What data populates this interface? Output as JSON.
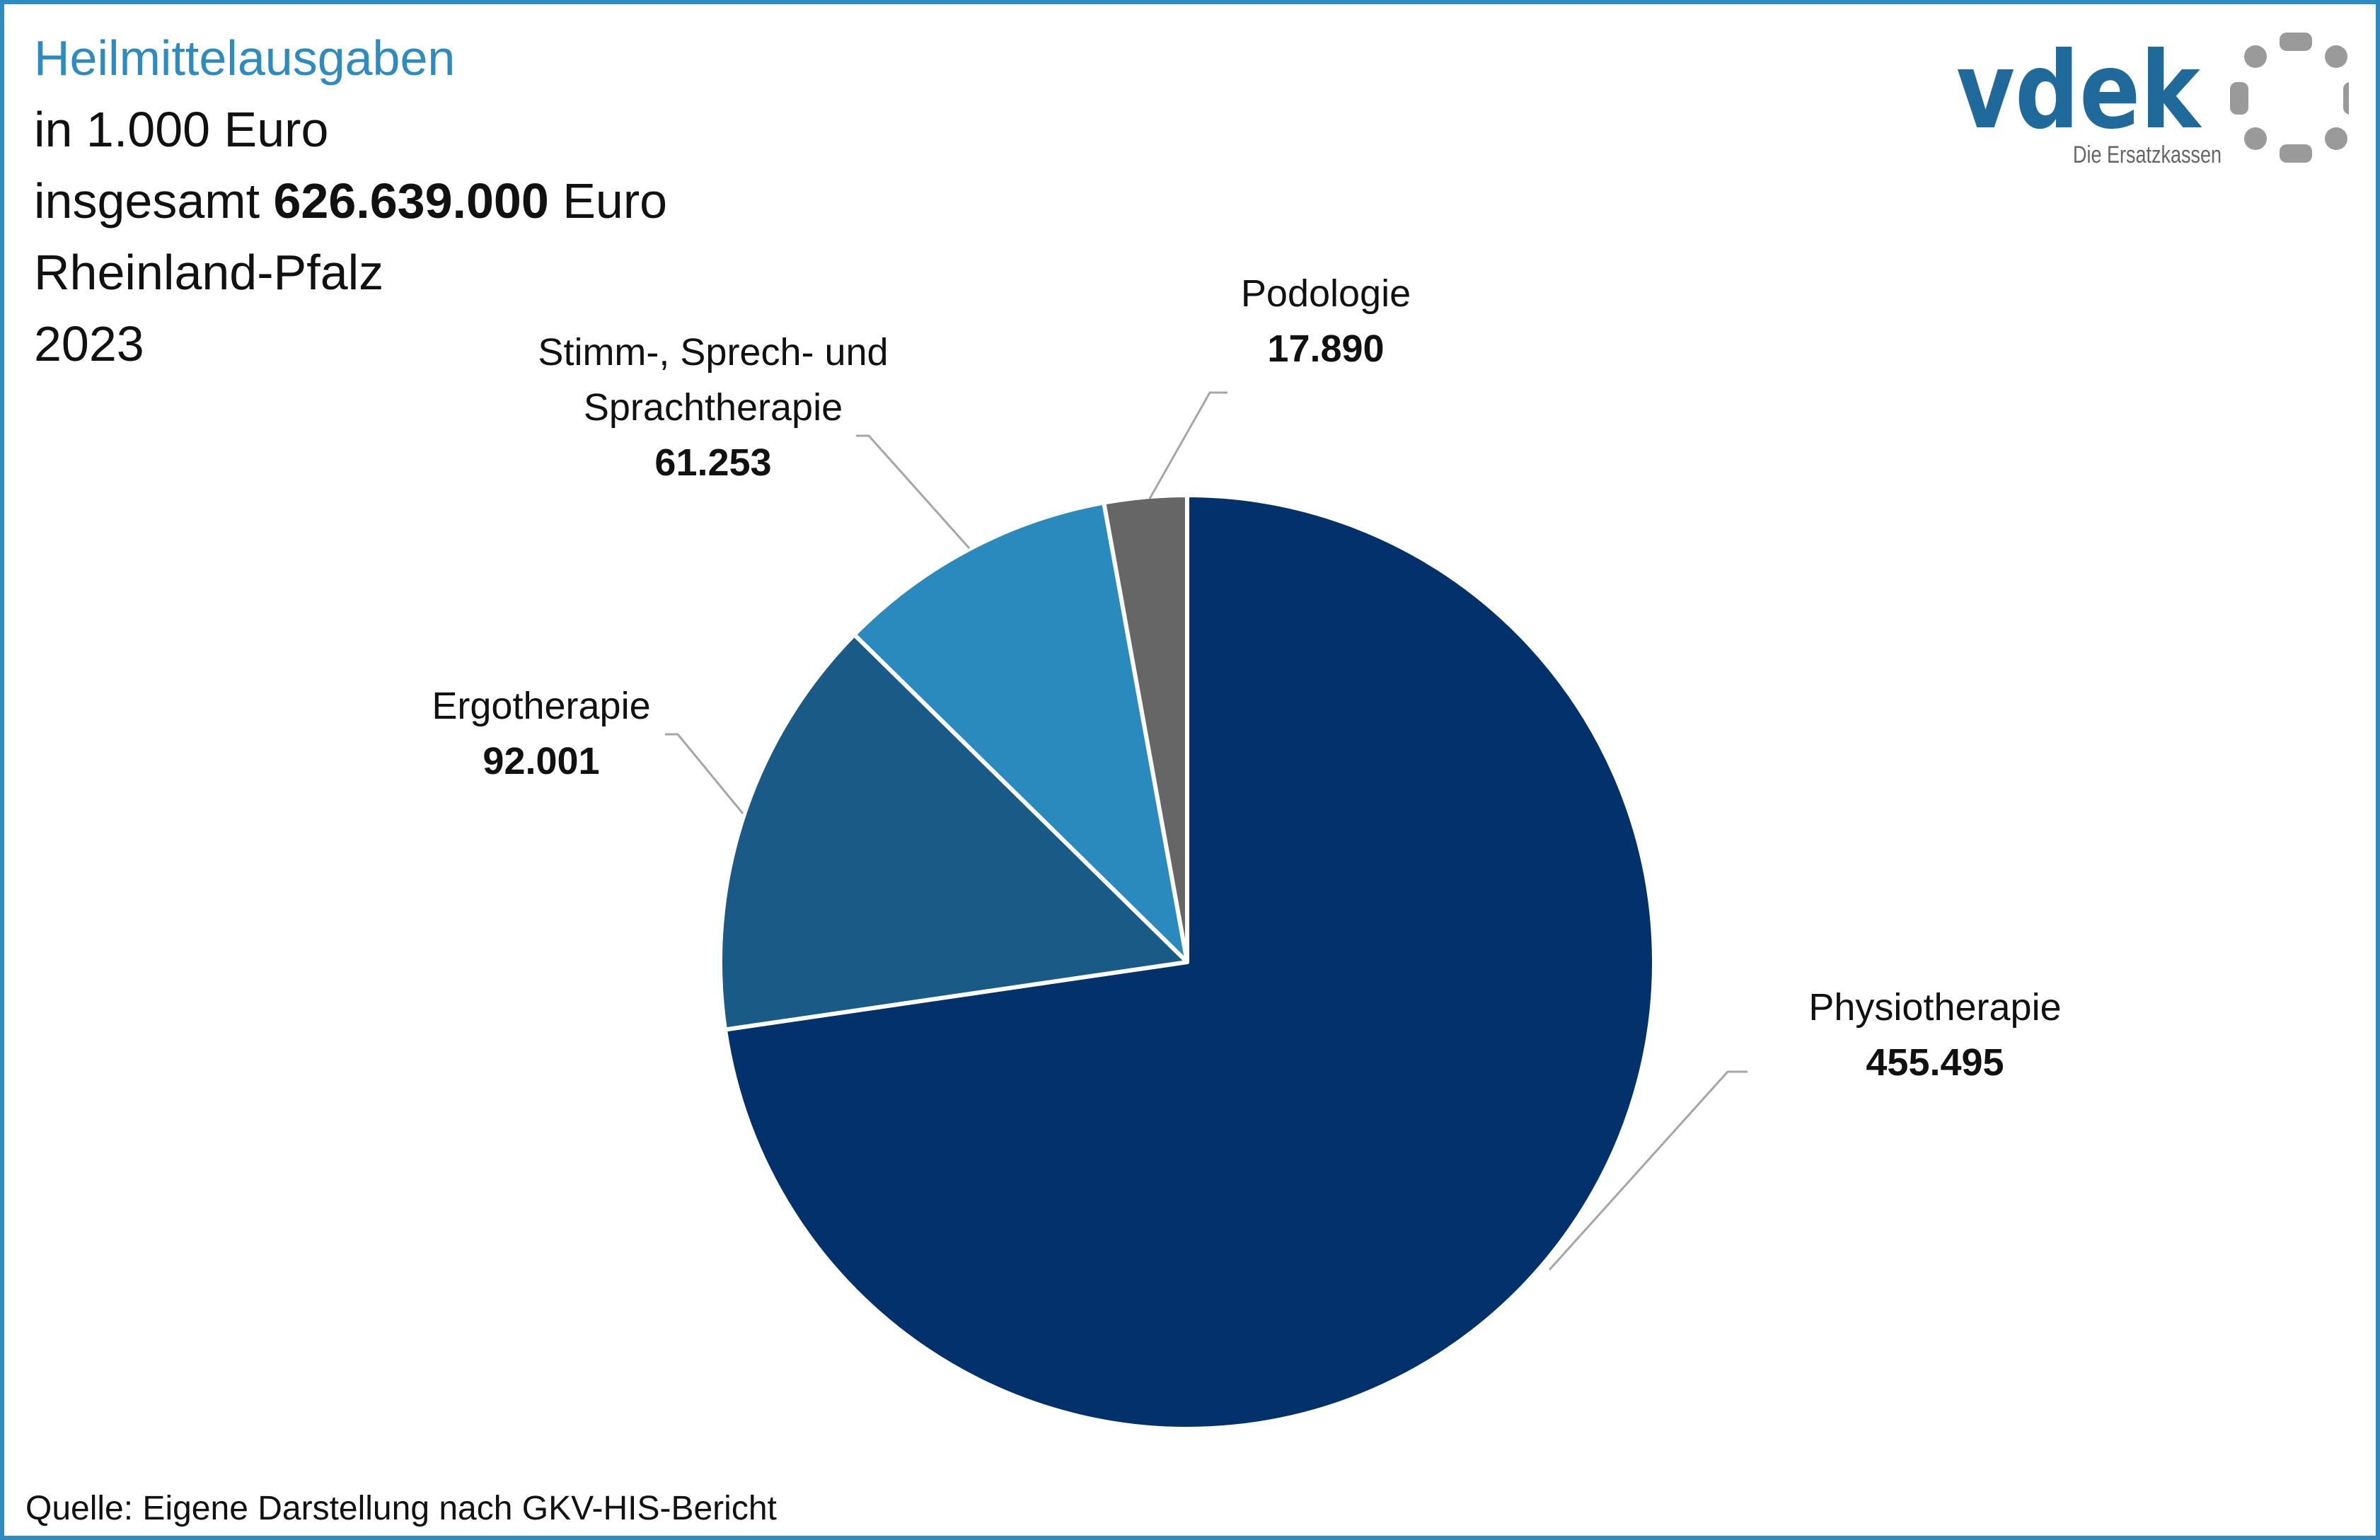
{
  "header": {
    "title": "Heilmittelausgaben",
    "unit_line": "in 1.000 Euro",
    "total_prefix": "insgesamt",
    "total_value": "626.639.000",
    "total_suffix": "Euro",
    "region": "Rheinland-Pfalz",
    "year": "2023"
  },
  "logo": {
    "wordmark": "vdek",
    "tagline": "Die Ersatzkassen"
  },
  "source": "Quelle: Eigene Darstellung nach GKV-HIS-Bericht",
  "colors": {
    "frame": "#2e8bc0",
    "title": "#2e8bc0",
    "logo_blue": "#1f6a9a",
    "logo_gray": "#9a9a9a"
  },
  "chart_data": {
    "type": "pie",
    "title": "Heilmittelausgaben",
    "unit": "in 1.000 Euro",
    "start_angle_deg": 0,
    "direction": "clockwise",
    "slices": [
      {
        "label": "Physiotherapie",
        "label_lines": [
          "Physiotherapie"
        ],
        "value": 455495,
        "value_label": "455.495",
        "color": "#03316b"
      },
      {
        "label": "Ergotherapie",
        "label_lines": [
          "Ergotherapie"
        ],
        "value": 92001,
        "value_label": "92.001",
        "color": "#1a5a86"
      },
      {
        "label": "Stimm-, Sprech- und Sprachtherapie",
        "label_lines": [
          "Stimm-, Sprech- und",
          "Sprachtherapie"
        ],
        "value": 61253,
        "value_label": "61.253",
        "color": "#2a8abd"
      },
      {
        "label": "Podologie",
        "label_lines": [
          "Podologie"
        ],
        "value": 17890,
        "value_label": "17.890",
        "color": "#666666"
      }
    ]
  }
}
